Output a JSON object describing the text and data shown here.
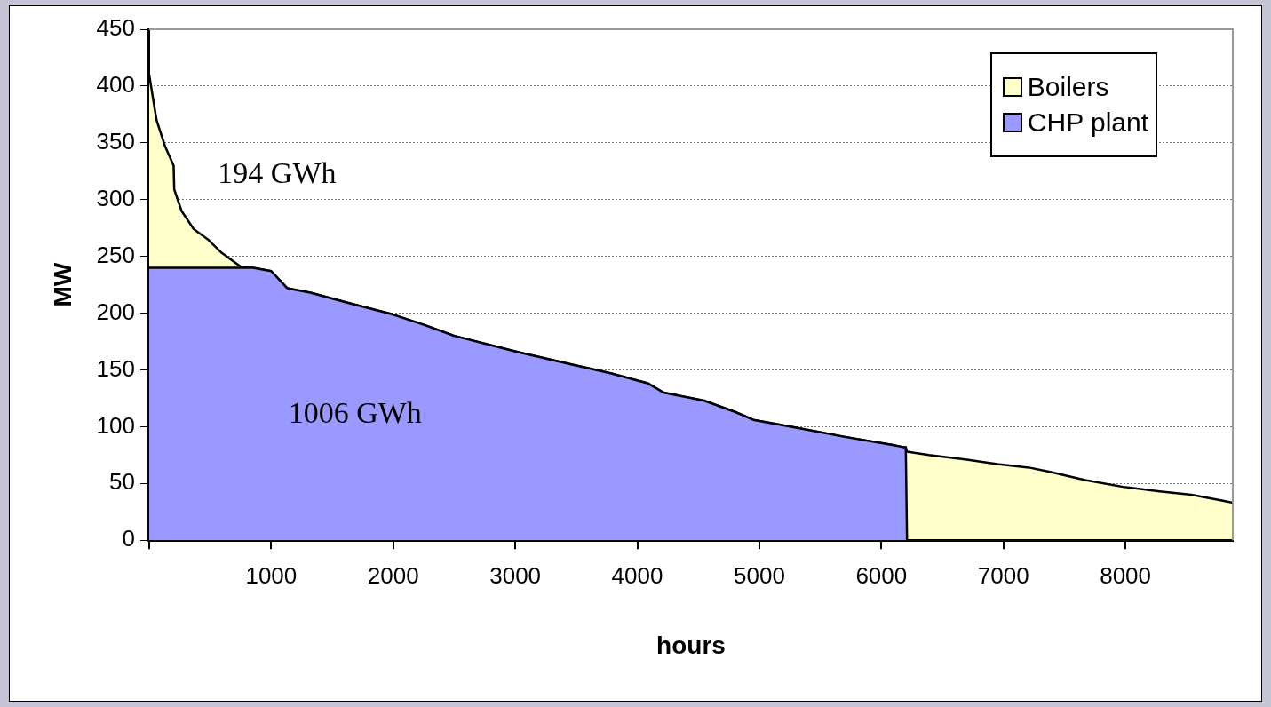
{
  "chart_data": {
    "type": "area",
    "stacked": true,
    "xlabel": "hours",
    "ylabel": "MW",
    "x": [
      0,
      60,
      130,
      200,
      205,
      265,
      365,
      480,
      595,
      750,
      850,
      1000,
      1130,
      1320,
      1630,
      1990,
      2245,
      2500,
      3010,
      3450,
      3780,
      4090,
      4215,
      4545,
      4800,
      4950,
      5310,
      5700,
      6080,
      6180,
      6200,
      6210,
      6390,
      6700,
      6950,
      7210,
      7390,
      7670,
      7980,
      8280,
      8540,
      8790,
      8880
    ],
    "series": [
      {
        "name": "CHP plant",
        "color": "#9999ff",
        "values": [
          240,
          240,
          240,
          240,
          240,
          240,
          240,
          240,
          240,
          240,
          240,
          237,
          222,
          218,
          209,
          199,
          190,
          180,
          166,
          155,
          147,
          138,
          130,
          123,
          113,
          106,
          99,
          91,
          84,
          82,
          82,
          0,
          0,
          0,
          0,
          0,
          0,
          0,
          0,
          0,
          0,
          0,
          0
        ]
      },
      {
        "name": "Boilers",
        "color": "#ffffcc",
        "values": [
          170,
          130,
          107,
          90,
          69,
          50,
          34,
          25,
          13,
          1,
          0,
          0,
          0,
          0,
          0,
          0,
          0,
          0,
          0,
          0,
          0,
          0,
          0,
          0,
          0,
          0,
          0,
          0,
          0,
          0,
          0,
          78,
          75,
          71,
          67,
          64,
          60,
          53,
          47,
          43,
          40,
          35,
          33
        ]
      }
    ],
    "xlim": [
      0,
      8880
    ],
    "xticks": [
      {
        "value": 0,
        "label": null
      },
      1000,
      2000,
      3000,
      4000,
      5000,
      6000,
      7000,
      8000
    ],
    "ylim": [
      0,
      450
    ],
    "yticks": [
      0,
      50,
      100,
      150,
      200,
      250,
      300,
      350,
      400,
      450
    ],
    "grid": "y",
    "legend": "top right",
    "annotations": [
      "194 GWh",
      "1006 GWh"
    ]
  }
}
